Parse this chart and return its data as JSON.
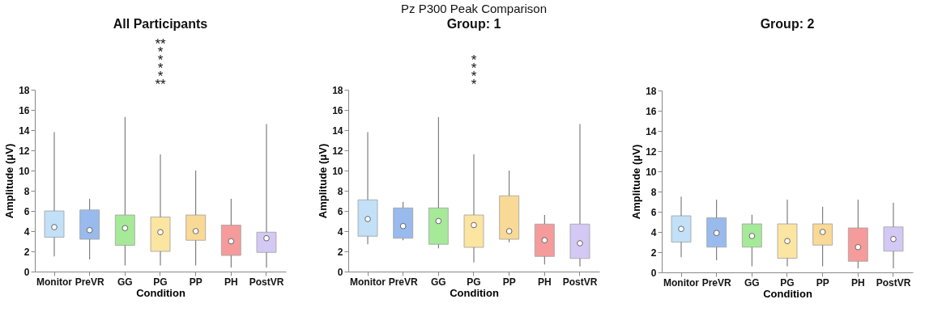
{
  "chart_data": [
    {
      "type": "box",
      "title": "All Participants",
      "xlabel": "Condition",
      "ylabel": "Amplitude (μV)",
      "categories": [
        "Monitor",
        "PreVR",
        "GG",
        "PG",
        "PP",
        "PH",
        "PostVR"
      ],
      "colors": [
        "#a9d4f5",
        "#6e9ee6",
        "#7fe06f",
        "#fbd97a",
        "#f7c96a",
        "#f27272",
        "#c3b3f0"
      ],
      "boxes": [
        {
          "low": 1.5,
          "q1": 3.4,
          "median": 4.4,
          "q3": 6.0,
          "high": 13.8
        },
        {
          "low": 1.2,
          "q1": 3.2,
          "median": 4.1,
          "q3": 6.1,
          "high": 7.2
        },
        {
          "low": 0.6,
          "q1": 2.6,
          "median": 4.3,
          "q3": 5.6,
          "high": 15.3
        },
        {
          "low": 0.6,
          "q1": 2.0,
          "median": 3.9,
          "q3": 5.4,
          "high": 11.6
        },
        {
          "low": 0.6,
          "q1": 3.1,
          "median": 4.0,
          "q3": 5.6,
          "high": 10.0
        },
        {
          "low": 0.4,
          "q1": 1.6,
          "median": 3.0,
          "q3": 4.6,
          "high": 7.2
        },
        {
          "low": 0.4,
          "q1": 1.9,
          "median": 3.3,
          "q3": 3.9,
          "high": 14.6
        }
      ],
      "ylim": [
        0,
        18
      ],
      "yticks": [
        0,
        2,
        4,
        6,
        8,
        10,
        12,
        14,
        16,
        18
      ],
      "grid": false,
      "annotations": [
        "**",
        "*",
        "*",
        "*",
        "*",
        "**"
      ]
    },
    {
      "type": "box",
      "title": "Pz P300 Peak Comparison",
      "subtitle": "Group: 1",
      "xlabel": "Condition",
      "ylabel": "Amplitude (μV)",
      "categories": [
        "Monitor",
        "PreVR",
        "GG",
        "PG",
        "PP",
        "PH",
        "PostVR"
      ],
      "colors": [
        "#a9d4f5",
        "#6e9ee6",
        "#7fe06f",
        "#fbd97a",
        "#f7c96a",
        "#f27272",
        "#c3b3f0"
      ],
      "boxes": [
        {
          "low": 2.7,
          "q1": 3.5,
          "median": 5.2,
          "q3": 7.1,
          "high": 13.8
        },
        {
          "low": 3.1,
          "q1": 3.3,
          "median": 4.5,
          "q3": 6.3,
          "high": 6.9
        },
        {
          "low": 2.3,
          "q1": 2.7,
          "median": 5.0,
          "q3": 6.3,
          "high": 15.3
        },
        {
          "low": 0.9,
          "q1": 2.4,
          "median": 4.6,
          "q3": 5.6,
          "high": 11.6
        },
        {
          "low": 2.9,
          "q1": 3.2,
          "median": 4.0,
          "q3": 7.5,
          "high": 10.0
        },
        {
          "low": 0.7,
          "q1": 1.5,
          "median": 3.1,
          "q3": 4.7,
          "high": 5.6
        },
        {
          "low": 0.5,
          "q1": 1.3,
          "median": 2.8,
          "q3": 4.7,
          "high": 14.6
        }
      ],
      "ylim": [
        0,
        18
      ],
      "yticks": [
        0,
        2,
        4,
        6,
        8,
        10,
        12,
        14,
        16,
        18
      ],
      "grid": false,
      "annotations": [
        "*",
        "*",
        "*",
        "*"
      ]
    },
    {
      "type": "box",
      "title": "Group: 2",
      "xlabel": "Condition",
      "ylabel": "Amplitude (μV)",
      "categories": [
        "Monitor",
        "PreVR",
        "GG",
        "PG",
        "PP",
        "PH",
        "PostVR"
      ],
      "colors": [
        "#a9d4f5",
        "#6e9ee6",
        "#7fe06f",
        "#fbd97a",
        "#f7c96a",
        "#f27272",
        "#c3b3f0"
      ],
      "boxes": [
        {
          "low": 1.5,
          "q1": 3.0,
          "median": 4.3,
          "q3": 5.6,
          "high": 7.5
        },
        {
          "low": 1.2,
          "q1": 2.5,
          "median": 3.9,
          "q3": 5.4,
          "high": 7.2
        },
        {
          "low": 0.6,
          "q1": 2.5,
          "median": 3.6,
          "q3": 4.8,
          "high": 5.7
        },
        {
          "low": 0.6,
          "q1": 1.4,
          "median": 3.1,
          "q3": 4.8,
          "high": 7.2
        },
        {
          "low": 0.6,
          "q1": 2.7,
          "median": 4.0,
          "q3": 4.8,
          "high": 6.5
        },
        {
          "low": 0.4,
          "q1": 1.1,
          "median": 2.5,
          "q3": 4.4,
          "high": 7.2
        },
        {
          "low": 0.4,
          "q1": 2.1,
          "median": 3.3,
          "q3": 4.5,
          "high": 6.9
        }
      ],
      "ylim": [
        0,
        18
      ],
      "yticks": [
        0,
        2,
        4,
        6,
        8,
        10,
        12,
        14,
        16,
        18
      ],
      "grid": false
    }
  ]
}
